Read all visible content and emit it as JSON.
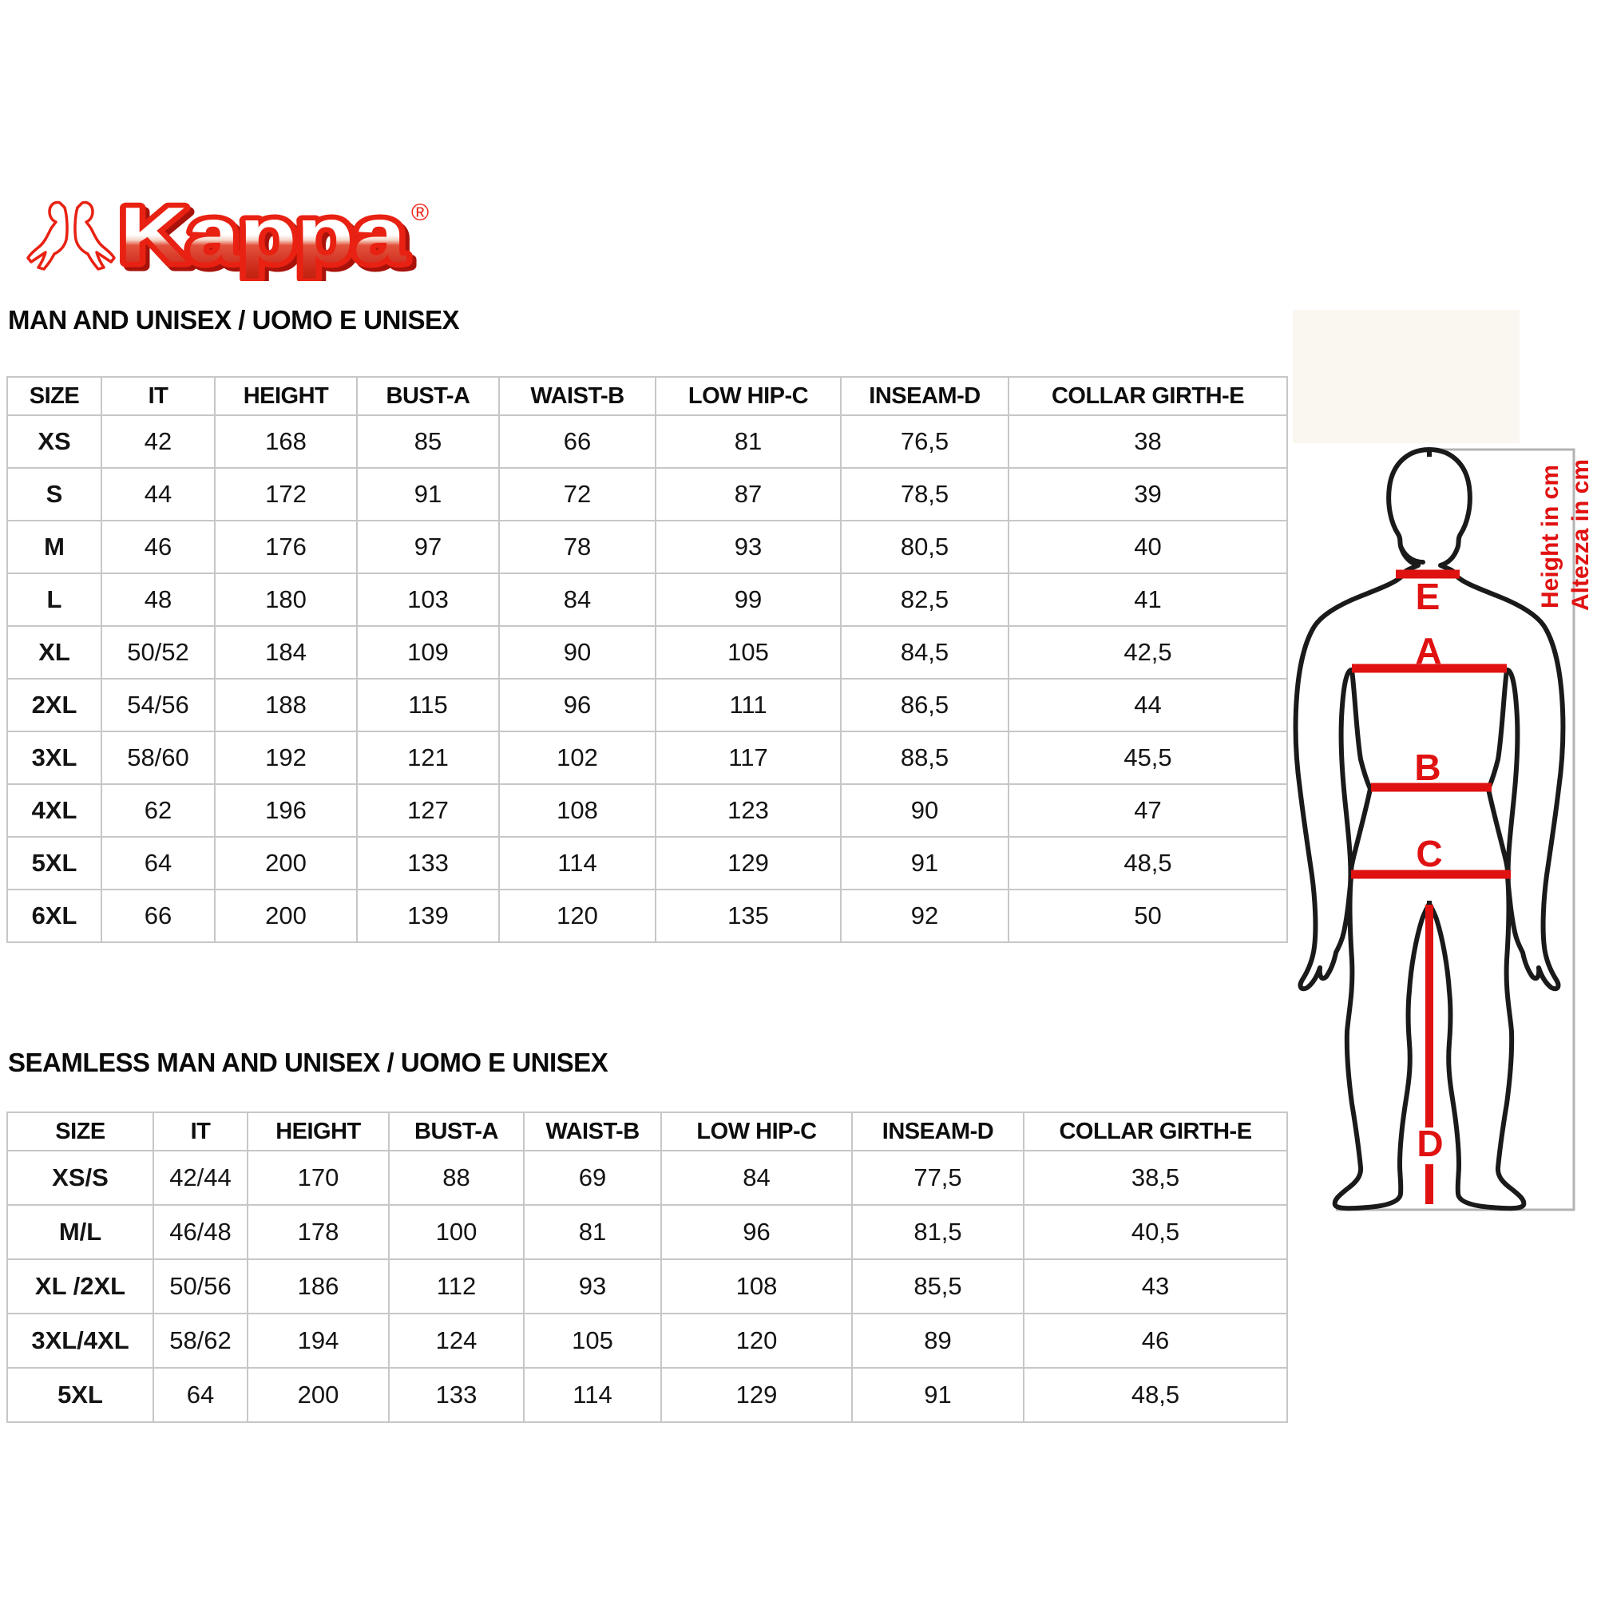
{
  "logo": {
    "brand": "Kappa",
    "registered": "®"
  },
  "sections": [
    {
      "title": "MAN AND UNISEX / UOMO E UNISEX",
      "table": {
        "headers": [
          "SIZE",
          "IT",
          "HEIGHT",
          "BUST-A",
          "WAIST-B",
          "LOW HIP-C",
          "INSEAM-D",
          "COLLAR GIRTH-E"
        ],
        "rows": [
          [
            "XS",
            "42",
            "168",
            "85",
            "66",
            "81",
            "76,5",
            "38"
          ],
          [
            "S",
            "44",
            "172",
            "91",
            "72",
            "87",
            "78,5",
            "39"
          ],
          [
            "M",
            "46",
            "176",
            "97",
            "78",
            "93",
            "80,5",
            "40"
          ],
          [
            "L",
            "48",
            "180",
            "103",
            "84",
            "99",
            "82,5",
            "41"
          ],
          [
            "XL",
            "50/52",
            "184",
            "109",
            "90",
            "105",
            "84,5",
            "42,5"
          ],
          [
            "2XL",
            "54/56",
            "188",
            "115",
            "96",
            "111",
            "86,5",
            "44"
          ],
          [
            "3XL",
            "58/60",
            "192",
            "121",
            "102",
            "117",
            "88,5",
            "45,5"
          ],
          [
            "4XL",
            "62",
            "196",
            "127",
            "108",
            "123",
            "90",
            "47"
          ],
          [
            "5XL",
            "64",
            "200",
            "133",
            "114",
            "129",
            "91",
            "48,5"
          ],
          [
            "6XL",
            "66",
            "200",
            "139",
            "120",
            "135",
            "92",
            "50"
          ]
        ]
      }
    },
    {
      "title": "SEAMLESS MAN AND UNISEX / UOMO E UNISEX",
      "table": {
        "headers": [
          "SIZE",
          "IT",
          "HEIGHT",
          "BUST-A",
          "WAIST-B",
          "LOW HIP-C",
          "INSEAM-D",
          "COLLAR GIRTH-E"
        ],
        "rows": [
          [
            "XS/S",
            "42/44",
            "170",
            "88",
            "69",
            "84",
            "77,5",
            "38,5"
          ],
          [
            "M/L",
            "46/48",
            "178",
            "100",
            "81",
            "96",
            "81,5",
            "40,5"
          ],
          [
            "XL /2XL",
            "50/56",
            "186",
            "112",
            "93",
            "108",
            "85,5",
            "43"
          ],
          [
            "3XL/4XL",
            "58/62",
            "194",
            "124",
            "105",
            "120",
            "89",
            "46"
          ],
          [
            "5XL",
            "64",
            "200",
            "133",
            "114",
            "129",
            "91",
            "48,5"
          ]
        ]
      }
    }
  ],
  "figure": {
    "measure_labels": {
      "e": "E",
      "a": "A",
      "b": "B",
      "c": "C",
      "d": "D"
    },
    "side_note_en": "Height in cm",
    "side_note_it": "Altezza in cm"
  },
  "colors": {
    "brand_red": "#e82112",
    "brand_red_dark": "#a8120a",
    "measure_red": "#e01111",
    "table_border": "#c7c7c7",
    "figure_border": "#b3b3b3",
    "cream": "#faf7f0"
  }
}
